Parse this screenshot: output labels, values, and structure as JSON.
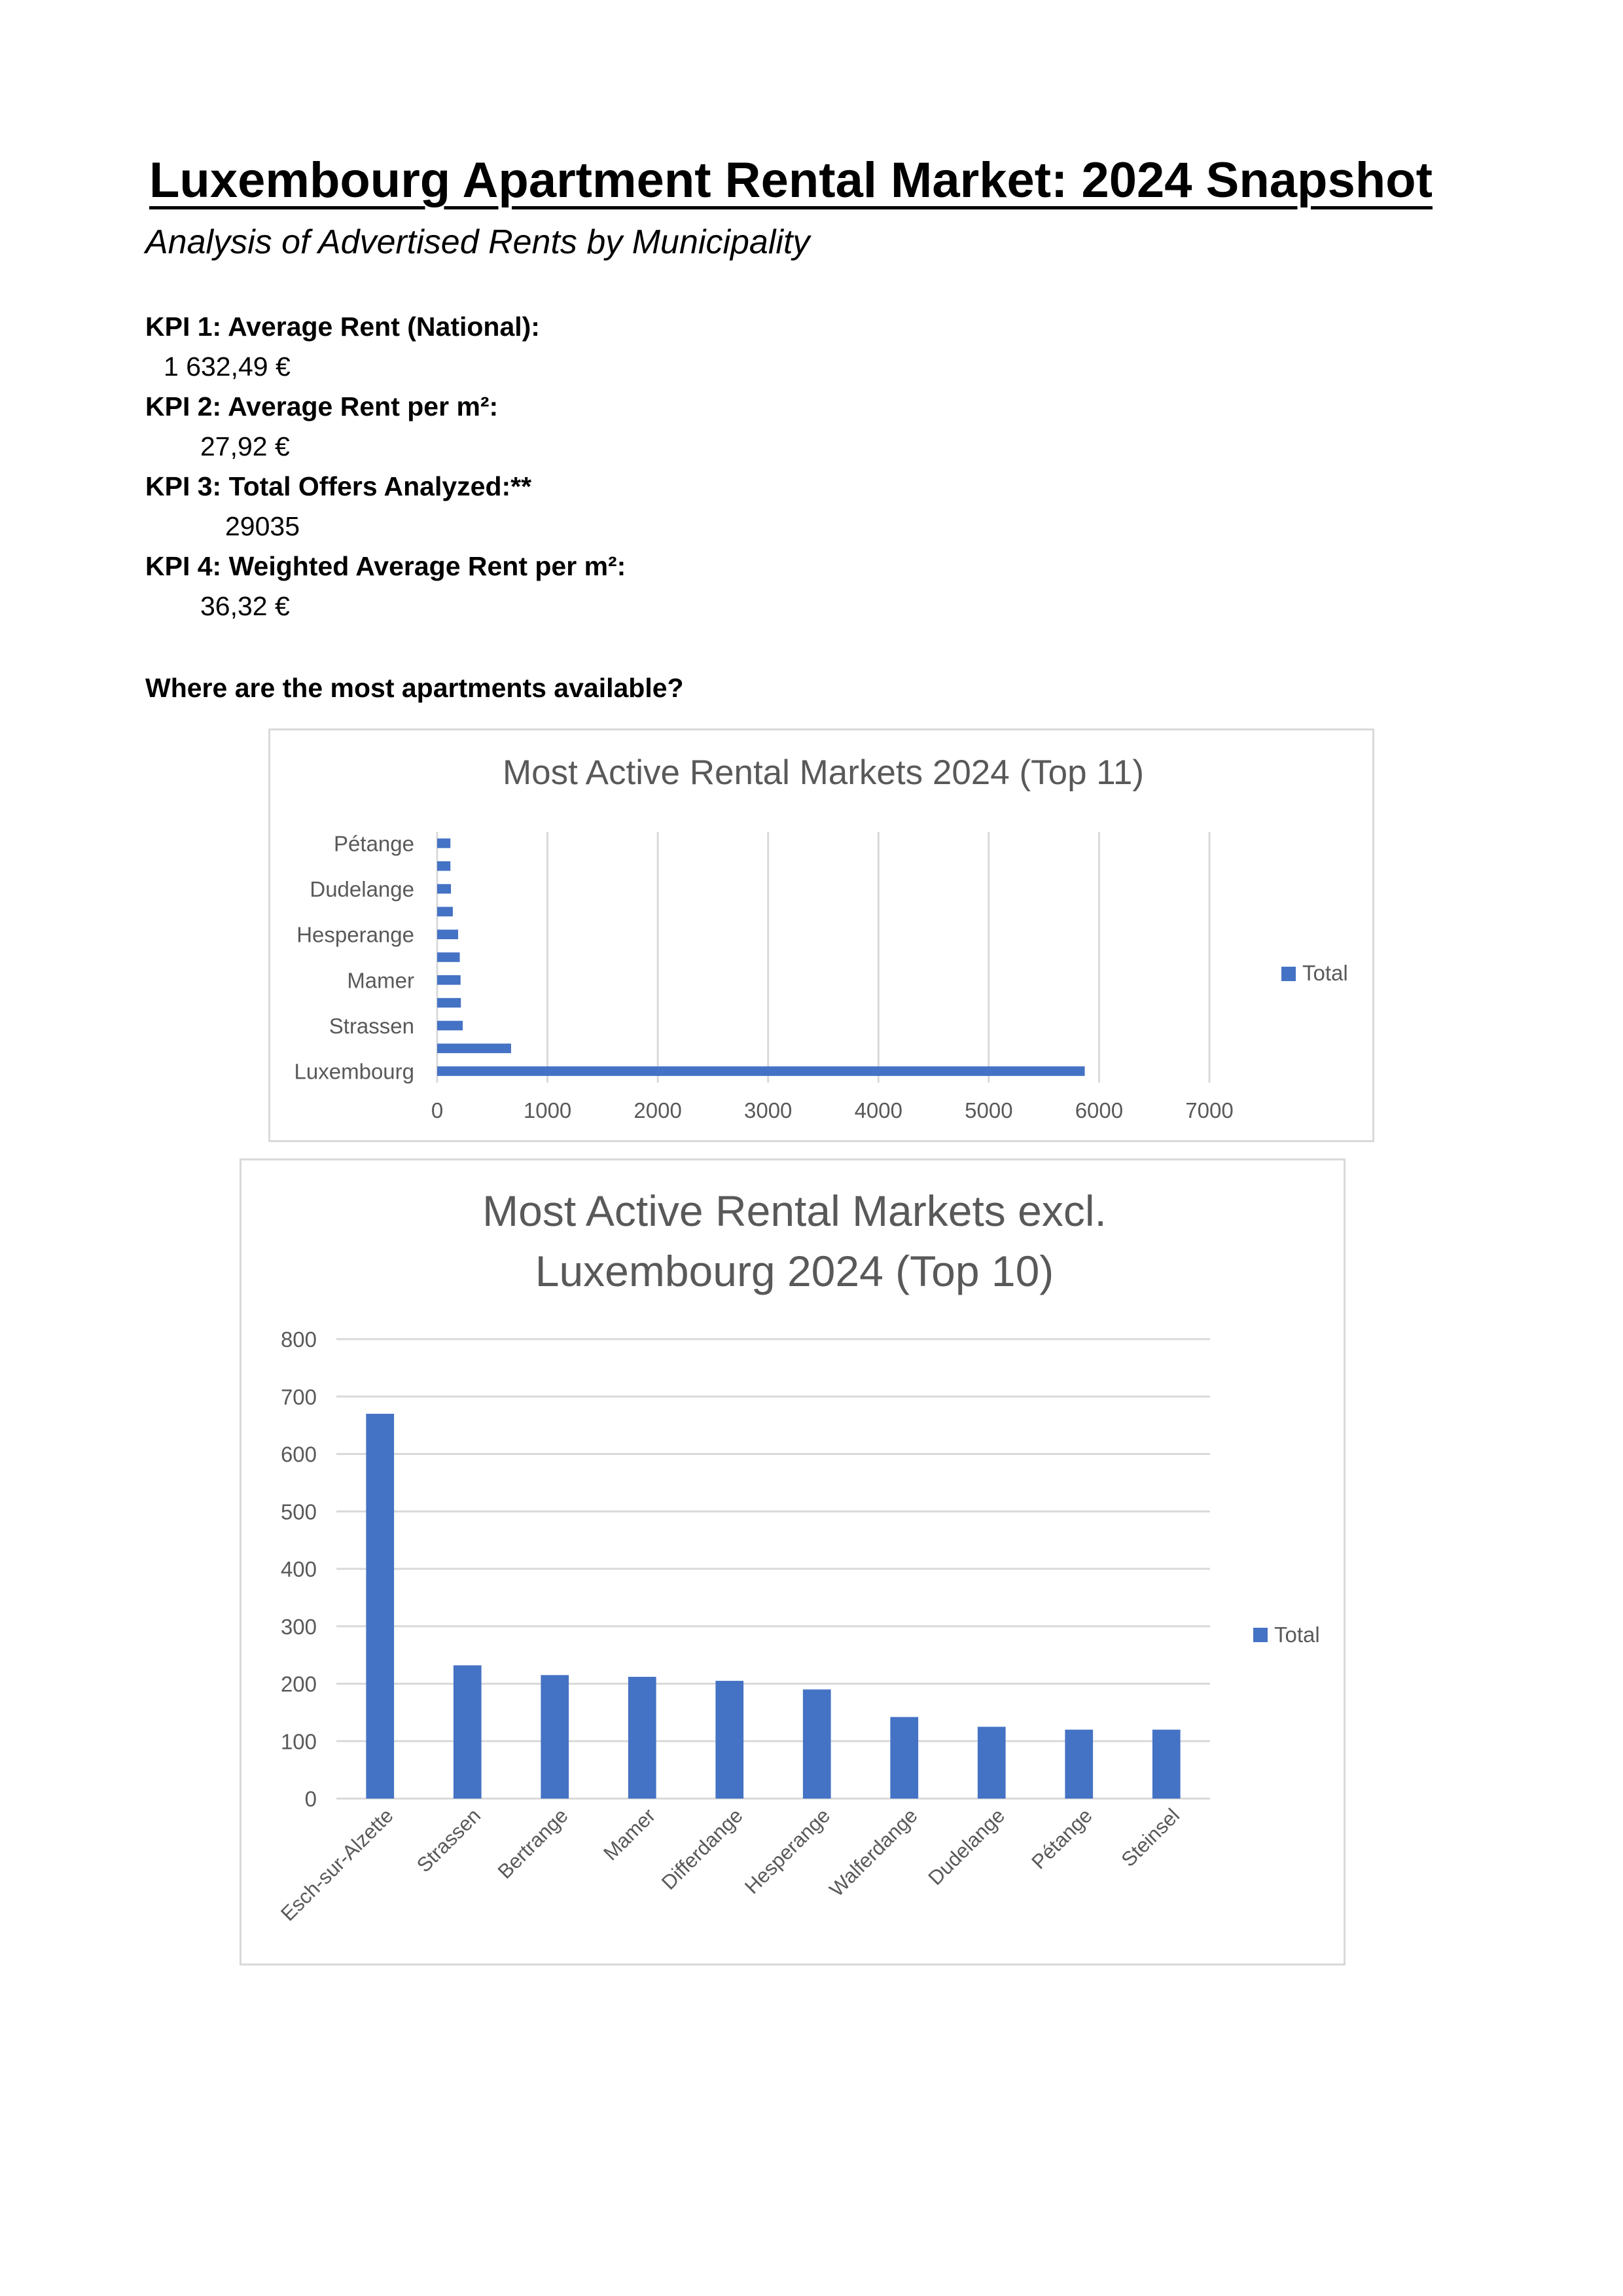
{
  "document": {
    "title": "Luxembourg Apartment Rental Market: 2024 Snapshot",
    "subtitle": "Analysis of Advertised Rents by Municipality",
    "kpis": [
      {
        "label": "KPI 1: Average Rent (National):",
        "value": "1 632,49 €"
      },
      {
        "label": "KPI 2: Average Rent per m²:",
        "value": "27,92 €"
      },
      {
        "label": "KPI 3: Total Offers Analyzed:**",
        "value": "29035"
      },
      {
        "label": "KPI 4: Weighted Average Rent per m²:",
        "value": "36,32 €"
      }
    ],
    "question": "Where are the most apartments available?"
  },
  "colors": {
    "bar": "#4472c4",
    "grid": "#d9d9d9",
    "text": "#595959"
  },
  "chart_data": [
    {
      "type": "bar",
      "orientation": "horizontal",
      "title": "Most Active Rental Markets 2024 (Top 11)",
      "categories": [
        "Luxembourg",
        "",
        "Strassen",
        "",
        "Mamer",
        "",
        "Hesperange",
        "",
        "Dudelange",
        "",
        "Pétange"
      ],
      "series": [
        {
          "name": "Total",
          "values": [
            5870,
            670,
            232,
            215,
            212,
            205,
            190,
            142,
            125,
            120,
            120
          ]
        }
      ],
      "xticks": [
        "0",
        "1000",
        "2000",
        "3000",
        "4000",
        "5000",
        "6000",
        "7000"
      ],
      "xlim": [
        0,
        7000
      ],
      "grid": true,
      "legend": "right"
    },
    {
      "type": "bar",
      "orientation": "vertical",
      "title_lines": [
        "Most Active Rental Markets excl.",
        "Luxembourg 2024 (Top 10)"
      ],
      "categories": [
        "Esch-sur-Alzette",
        "Strassen",
        "Bertrange",
        "Mamer",
        "Differdange",
        "Hesperange",
        "Walferdange",
        "Dudelange",
        "Pétange",
        "Steinsel"
      ],
      "series": [
        {
          "name": "Total",
          "values": [
            670,
            232,
            215,
            212,
            205,
            190,
            142,
            125,
            120,
            120
          ]
        }
      ],
      "yticks": [
        "0",
        "100",
        "200",
        "300",
        "400",
        "500",
        "600",
        "700",
        "800"
      ],
      "ylim": [
        0,
        800
      ],
      "grid": true,
      "legend": "right"
    }
  ]
}
